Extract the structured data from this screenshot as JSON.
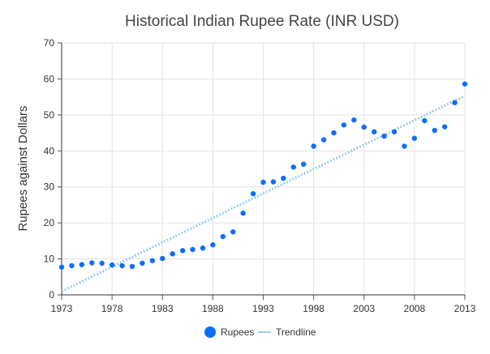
{
  "chart_data": {
    "type": "scatter",
    "title": "Historical Indian Rupee Rate (INR USD)",
    "xlabel": "",
    "ylabel": "Rupees against Dollars",
    "xlim": [
      1973,
      2013
    ],
    "ylim": [
      0,
      70
    ],
    "x_ticks": [
      "1973",
      "1978",
      "1983",
      "1988",
      "1993",
      "1998",
      "2003",
      "2008",
      "2013"
    ],
    "y_ticks": [
      "0",
      "10",
      "20",
      "30",
      "40",
      "50",
      "60",
      "70"
    ],
    "grid": true,
    "legend_position": "bottom",
    "series": [
      {
        "name": "Rupees",
        "color": "#0d6efd",
        "points": [
          [
            1973,
            7.7
          ],
          [
            1974,
            8.1
          ],
          [
            1975,
            8.4
          ],
          [
            1976,
            8.9
          ],
          [
            1977,
            8.8
          ],
          [
            1978,
            8.3
          ],
          [
            1979,
            8.1
          ],
          [
            1980,
            7.9
          ],
          [
            1981,
            8.8
          ],
          [
            1982,
            9.5
          ],
          [
            1983,
            10.1
          ],
          [
            1984,
            11.4
          ],
          [
            1985,
            12.3
          ],
          [
            1986,
            12.6
          ],
          [
            1987,
            13.0
          ],
          [
            1988,
            13.9
          ],
          [
            1989,
            16.2
          ],
          [
            1990,
            17.5
          ],
          [
            1991,
            22.7
          ],
          [
            1992,
            28.1
          ],
          [
            1993,
            31.3
          ],
          [
            1994,
            31.4
          ],
          [
            1995,
            32.4
          ],
          [
            1996,
            35.5
          ],
          [
            1997,
            36.3
          ],
          [
            1998,
            41.3
          ],
          [
            1999,
            43.1
          ],
          [
            2000,
            45.0
          ],
          [
            2001,
            47.2
          ],
          [
            2002,
            48.6
          ],
          [
            2003,
            46.6
          ],
          [
            2004,
            45.3
          ],
          [
            2005,
            44.1
          ],
          [
            2006,
            45.3
          ],
          [
            2007,
            41.3
          ],
          [
            2008,
            43.5
          ],
          [
            2009,
            48.4
          ],
          [
            2010,
            45.7
          ],
          [
            2011,
            46.7
          ],
          [
            2012,
            53.4
          ],
          [
            2013,
            58.6
          ]
        ]
      },
      {
        "name": "Trendline",
        "color": "#9ccfe8",
        "points": [
          [
            1973,
            1.0
          ],
          [
            2013,
            55.3
          ]
        ]
      }
    ]
  }
}
